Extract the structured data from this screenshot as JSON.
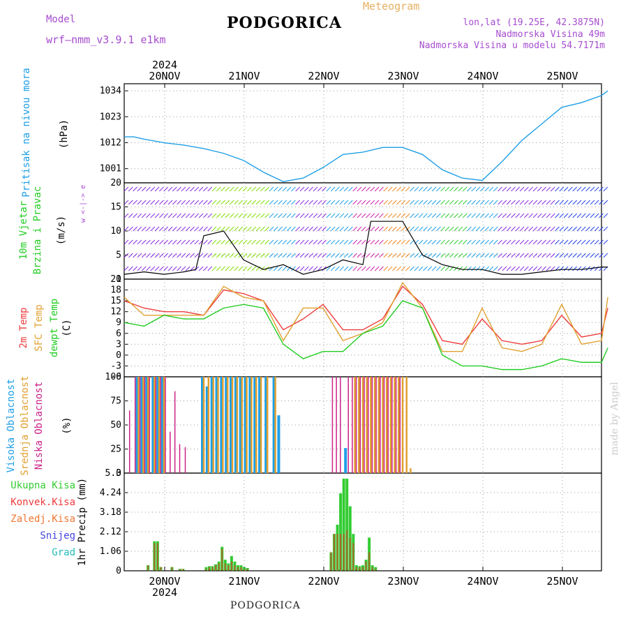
{
  "header": {
    "model_label": "Model",
    "model_name": "wrf—nmm_v3.9.1 e1km",
    "title": "PODGORICA",
    "meteogram": "Meteogram",
    "lonlat": "lon,lat (19.25E, 42.3875N)",
    "elevation": "Nadmorska Visina 49m",
    "model_elevation": "Nadmorska Visina u modelu 54.7171m",
    "footer": "PODGORICA",
    "watermark": "made by Angel"
  },
  "colors": {
    "pressure": "#1e9fe6",
    "t2m": "#ee3b3b",
    "sfc": "#e0a030",
    "dewpt": "#22cc22",
    "high_cloud": "#1e9fe6",
    "mid_cloud": "#e0a030",
    "low_cloud": "#cc2288",
    "precip_total": "#33cc33",
    "precip_conv": "#ee3b3b",
    "precip_frozen": "#ee7733",
    "snow": "#4444dd",
    "grad": "#22bbbb",
    "header_purple": "#a64ccf",
    "header_orange": "#e8b060"
  },
  "chart_data": [
    {
      "type": "line",
      "panel": "pressure",
      "ylabel_left": "Pritisak na nivou mora",
      "unit": "(hPa)",
      "y_ticks": [
        1001,
        1012,
        1023,
        1034
      ],
      "ylim": [
        995,
        1037
      ],
      "x_days": [
        0,
        0.12,
        0.25,
        0.5,
        0.75,
        1.0,
        1.25,
        1.5,
        1.75,
        2.0,
        2.25,
        2.5,
        2.75,
        3.0,
        3.25,
        3.5,
        3.75,
        4.0,
        4.25,
        4.5,
        4.75,
        5.0,
        5.25,
        5.5,
        5.75,
        6.0,
        6.08
      ],
      "values": [
        1014.5,
        1014.5,
        1013.5,
        1012,
        1011,
        1009.5,
        1007.5,
        1004.5,
        999.5,
        995.5,
        997,
        1001.5,
        1007,
        1008,
        1010,
        1010,
        1007,
        1000.5,
        997,
        996,
        1004,
        1013,
        1020,
        1027,
        1029,
        1032,
        1034
      ]
    },
    {
      "type": "line",
      "panel": "wind",
      "ylabel_left": "10m Vjetar Brzina i Pravac",
      "unit": "(m/s)",
      "direction_legend": "w <-|-> e",
      "y_ticks": [
        0,
        5,
        10,
        15,
        20
      ],
      "ylim": [
        0,
        20
      ],
      "x_days": [
        0,
        0.25,
        0.5,
        0.75,
        0.9,
        1.0,
        1.25,
        1.5,
        1.75,
        2.0,
        2.25,
        2.5,
        2.75,
        3.0,
        3.1,
        3.25,
        3.5,
        3.75,
        4.0,
        4.25,
        4.5,
        4.75,
        5.0,
        5.25,
        5.5,
        5.75,
        6.0,
        6.08
      ],
      "values": [
        1,
        1.5,
        1,
        1.5,
        2,
        9,
        10,
        4,
        2,
        3,
        1,
        2,
        4,
        3,
        12,
        12,
        12,
        5,
        3,
        2,
        2,
        1,
        1,
        1.5,
        2,
        2,
        2.5,
        2.5
      ]
    },
    {
      "type": "line",
      "panel": "temperature",
      "ylabel_left": "2m Temp / SFC Temp / dewpt Temp",
      "unit": "(C)",
      "y_ticks": [
        -6,
        -3,
        0,
        3,
        6,
        9,
        12,
        15,
        18,
        21
      ],
      "ylim": [
        -6,
        21
      ],
      "x_days": [
        0,
        0.25,
        0.5,
        0.75,
        1.0,
        1.25,
        1.5,
        1.75,
        2.0,
        2.25,
        2.5,
        2.75,
        3.0,
        3.25,
        3.5,
        3.75,
        4.0,
        4.25,
        4.5,
        4.75,
        5.0,
        5.25,
        5.5,
        5.75,
        6.0,
        6.08
      ],
      "series": [
        {
          "name": "2m Temp",
          "values": [
            15,
            13,
            12,
            12,
            11,
            18,
            17,
            15,
            7,
            10,
            14,
            7,
            7,
            10,
            19,
            14,
            4,
            3,
            10,
            4,
            3,
            4,
            11,
            5,
            6,
            13
          ]
        },
        {
          "name": "SFC Temp",
          "values": [
            16,
            11,
            11,
            11,
            11,
            19,
            16,
            15,
            4,
            13,
            13,
            4,
            6,
            9,
            20,
            13,
            1,
            1,
            13,
            2,
            1,
            3,
            14,
            3,
            4,
            16
          ]
        },
        {
          "name": "dewpt Temp",
          "values": [
            9,
            8,
            11,
            10,
            10,
            13,
            14,
            13,
            3,
            -1,
            1,
            1,
            6,
            8,
            15,
            13,
            0,
            -3,
            -3,
            -4,
            -4,
            -3,
            -1,
            -2,
            -2,
            2
          ]
        }
      ]
    },
    {
      "type": "bar",
      "panel": "cloud",
      "ylabel_left": "Visoka Oblacnost / Srednja Oblacnost / Niska Oblacnost",
      "unit": "(%)",
      "y_ticks": [
        0,
        25,
        50,
        75,
        100
      ],
      "ylim": [
        0,
        100
      ],
      "bar_days": [
        0.05,
        0.12,
        0.18,
        0.24,
        0.3,
        0.38,
        0.44,
        0.5,
        0.56,
        0.62,
        0.68,
        0.75,
        0.82,
        0.9,
        1.0,
        1.06,
        1.12,
        1.18,
        1.24,
        1.3,
        1.36,
        1.42,
        1.48,
        1.54,
        1.6,
        1.66,
        1.72,
        1.8,
        1.9,
        1.96,
        2.6,
        2.65,
        2.7,
        2.75,
        2.8,
        2.85,
        2.9,
        2.95,
        3.0,
        3.05,
        3.1,
        3.15,
        3.2,
        3.25,
        3.3,
        3.35,
        3.4,
        3.45,
        3.5,
        3.55,
        3.6
      ],
      "series": [
        {
          "name": "Visoka Oblacnost",
          "values": [
            0,
            0,
            100,
            100,
            100,
            100,
            100,
            100,
            0,
            0,
            0,
            0,
            0,
            0,
            100,
            90,
            100,
            100,
            100,
            100,
            100,
            100,
            100,
            100,
            100,
            100,
            100,
            100,
            100,
            60,
            0,
            0,
            0,
            0,
            26,
            0,
            0,
            0,
            0,
            0,
            0,
            0,
            0,
            0,
            0,
            0,
            0,
            0,
            0,
            0,
            0
          ]
        },
        {
          "name": "Srednja Oblacnost",
          "values": [
            0,
            0,
            100,
            100,
            100,
            100,
            100,
            100,
            0,
            0,
            0,
            0,
            0,
            0,
            100,
            100,
            100,
            100,
            100,
            100,
            100,
            100,
            100,
            100,
            100,
            100,
            100,
            100,
            100,
            0,
            0,
            0,
            0,
            0,
            0,
            0,
            100,
            100,
            100,
            100,
            100,
            100,
            100,
            100,
            100,
            100,
            100,
            100,
            100,
            100,
            5
          ]
        },
        {
          "name": "Niska Oblacnost",
          "values": [
            65,
            100,
            100,
            100,
            100,
            100,
            100,
            100,
            43,
            85,
            30,
            27,
            0,
            0,
            0,
            0,
            0,
            0,
            0,
            0,
            0,
            0,
            0,
            0,
            0,
            0,
            0,
            0,
            0,
            0,
            100,
            100,
            100,
            0,
            100,
            100,
            100,
            100,
            100,
            100,
            100,
            100,
            100,
            100,
            100,
            100,
            100,
            100,
            0,
            0,
            0
          ]
        }
      ]
    },
    {
      "type": "bar",
      "panel": "precip",
      "ylabel_left": "1hr Precip",
      "unit": "(mm)",
      "legend": [
        "Ukupna Kisa",
        "Konvek.Kisa",
        "Zaledj.Kisa",
        "Snijeg",
        "Grad"
      ],
      "y_ticks": [
        0,
        1.06,
        2.12,
        3.18,
        4.24,
        5.3
      ],
      "ylim": [
        0,
        5.3
      ],
      "bar_days": [
        0.3,
        0.38,
        0.42,
        0.46,
        0.6,
        0.7,
        0.74,
        1.03,
        1.07,
        1.11,
        1.15,
        1.19,
        1.23,
        1.27,
        1.31,
        1.35,
        1.39,
        1.43,
        1.47,
        1.51,
        1.55,
        2.6,
        2.64,
        2.68,
        2.72,
        2.76,
        2.8,
        2.84,
        2.88,
        2.92,
        2.96,
        3.0,
        3.04,
        3.08,
        3.12,
        3.16,
        3.2,
        3.24
      ],
      "series": [
        {
          "name": "Ukupna Kisa",
          "values": [
            0.3,
            1.6,
            1.6,
            0.2,
            0.2,
            0.1,
            0.1,
            0.2,
            0.25,
            0.25,
            0.35,
            0.5,
            1.3,
            0.6,
            0.4,
            0.8,
            0.5,
            0.3,
            0.3,
            0.2,
            0.15,
            1.0,
            2.0,
            2.5,
            4.2,
            5.0,
            5.0,
            3.5,
            2.0,
            0.3,
            0.25,
            0.3,
            0.6,
            1.8,
            0.3,
            0.2,
            0,
            0
          ]
        },
        {
          "name": "Konvek.Kisa",
          "values": [
            0.3,
            1.5,
            1.5,
            0.2,
            0.2,
            0.1,
            0.1,
            0.1,
            0.2,
            0.2,
            0.3,
            0.4,
            1.2,
            0.4,
            0.3,
            0.5,
            0.3,
            0.2,
            0.2,
            0.1,
            0.1,
            1.0,
            2.0,
            2.0,
            2.0,
            2.0,
            2.2,
            1.8,
            1.5,
            0.2,
            0.2,
            0.2,
            0.5,
            1.0,
            0.2,
            0.1,
            0,
            0
          ]
        }
      ]
    }
  ],
  "x_axis": {
    "day_labels": [
      "20NOV",
      "21NOV",
      "22NOV",
      "23NOV",
      "24NOV",
      "25NOV"
    ],
    "year": "2024"
  }
}
